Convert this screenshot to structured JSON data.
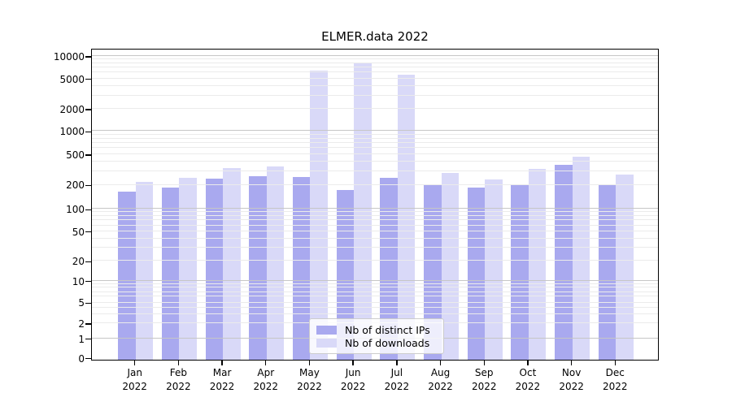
{
  "title": "ELMER.data 2022",
  "chart_data": {
    "type": "bar",
    "title": "ELMER.data 2022",
    "categories": [
      "Jan 2022",
      "Feb 2022",
      "Mar 2022",
      "Apr 2022",
      "May 2022",
      "Jun 2022",
      "Jul 2022",
      "Aug 2022",
      "Sep 2022",
      "Oct 2022",
      "Nov 2022",
      "Dec 2022"
    ],
    "month_labels": [
      "Jan",
      "Feb",
      "Mar",
      "Apr",
      "May",
      "Jun",
      "Jul",
      "Aug",
      "Sep",
      "Oct",
      "Nov",
      "Dec"
    ],
    "year_label": "2022",
    "series": [
      {
        "name": "Nb of distinct IPs",
        "color": "#a9a9ef",
        "values": [
          165,
          185,
          240,
          260,
          250,
          172,
          245,
          205,
          185,
          200,
          360,
          200
        ]
      },
      {
        "name": "Nb of downloads",
        "color": "#d9d9f8",
        "values": [
          220,
          245,
          330,
          350,
          6300,
          8200,
          5600,
          285,
          235,
          320,
          460,
          270
        ]
      }
    ],
    "ylabel": "",
    "xlabel": "",
    "yscale": "symlog",
    "ytick_labels": [
      "0",
      "1",
      "2",
      "5",
      "10",
      "20",
      "50",
      "100",
      "200",
      "500",
      "1000",
      "2000",
      "5000",
      "10000"
    ],
    "yticks": [
      0,
      1,
      2,
      5,
      10,
      20,
      50,
      100,
      200,
      500,
      1000,
      2000,
      5000,
      10000
    ],
    "ylim": [
      0,
      10000
    ],
    "grid": true,
    "grid_major_color": "#c6c6c6",
    "grid_minor_color": "#ebebeb",
    "legend_position": "lower center"
  },
  "legend": {
    "items": [
      {
        "label": "Nb of distinct IPs",
        "color": "#a9a9ef"
      },
      {
        "label": "Nb of downloads",
        "color": "#d9d9f8"
      }
    ]
  }
}
